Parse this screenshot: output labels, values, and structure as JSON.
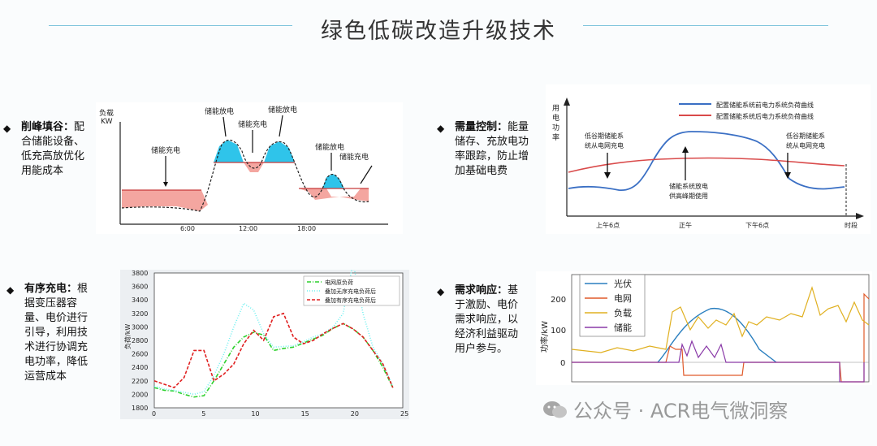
{
  "title": "绿色低碳改造升级技术",
  "sections": [
    {
      "head": "削峰填谷：",
      "body": "配合储能设备、低充高放优化用能成本"
    },
    {
      "head": "需量控制：",
      "body": "能量储存、充放电功率跟踪，防止增加基础电费"
    },
    {
      "head": "有序充电：",
      "body": "根据变压器容量、电价进行引导，利用技术进行协调充电功率，降低运营成本"
    },
    {
      "head": "需求响应：",
      "body": "基于激励、电价需求响应，以经济利益驱动用户参与。"
    }
  ],
  "chart1": {
    "ylabel": "负载\nKW",
    "annotations": [
      "储能充电",
      "储能放电",
      "储能充电",
      "储能放电",
      "储能放电",
      "储能充电"
    ],
    "xticks": [
      "6:00",
      "12:00",
      "18:00"
    ]
  },
  "chart2": {
    "ylabel": "用\n电\n功\n率",
    "legend": [
      "配置储能系统前电力系统负荷曲线",
      "配置储能系统后电力系统负荷曲线"
    ],
    "annotations": [
      "低谷期储能系\n统从电网充电",
      "储能系统放电\n供高峰期使用",
      "低谷期储能系\n统从电网充电"
    ],
    "xticks": [
      "上午6点",
      "正午",
      "下午6点",
      "时段"
    ]
  },
  "chart3": {
    "type": "line",
    "ylabel": "负荷/kW",
    "legend": [
      "电网原负荷",
      "叠加无序充电负荷后",
      "叠加有序充电负荷后"
    ],
    "yticks": [
      "3800",
      "3600",
      "3400",
      "3200",
      "3000",
      "2800",
      "2600",
      "2400",
      "2200",
      "2000",
      "1800"
    ],
    "xticks": [
      "0",
      "5",
      "10",
      "15",
      "20",
      "25"
    ],
    "xlim": [
      0,
      25
    ],
    "ylim": [
      1800,
      3800
    ],
    "colors": [
      "#2ed12e",
      "#6ef0f0",
      "#e02020"
    ],
    "x": [
      0,
      1,
      2,
      3,
      4,
      5,
      6,
      7,
      8,
      9,
      10,
      11,
      12,
      13,
      14,
      15,
      16,
      17,
      18,
      19,
      20,
      21,
      22,
      23,
      24
    ],
    "series": [
      {
        "name": "电网原负荷",
        "values": [
          2100,
          2060,
          2050,
          2000,
          1960,
          1980,
          2200,
          2450,
          2700,
          2850,
          2920,
          2880,
          2650,
          2680,
          2700,
          2760,
          2820,
          2880,
          2980,
          3050,
          2970,
          2850,
          2650,
          2400,
          2100
        ]
      },
      {
        "name": "叠加无序充电负荷后",
        "values": [
          2120,
          2080,
          2060,
          2030,
          2000,
          2040,
          2280,
          2600,
          3000,
          3350,
          3250,
          2900,
          2700,
          2710,
          2720,
          2780,
          2850,
          2900,
          3000,
          3200,
          3950,
          3200,
          2700,
          2450,
          2120
        ]
      },
      {
        "name": "叠加有序充电负荷后",
        "values": [
          2200,
          2150,
          2100,
          2250,
          2650,
          2650,
          2200,
          2300,
          2450,
          2750,
          2950,
          2800,
          3150,
          3200,
          2850,
          2750,
          2800,
          2900,
          2980,
          3050,
          2970,
          2850,
          2650,
          2450,
          2100
        ]
      }
    ]
  },
  "chart4": {
    "ylabel": "功率/kW",
    "legend": [
      "光伏",
      "电网",
      "负载",
      "储能"
    ],
    "colors": [
      "#2a7fbf",
      "#e05a2a",
      "#e0b020",
      "#8a3aa8"
    ],
    "yticks": [
      "200",
      "100",
      "0"
    ]
  },
  "watermark": "公众号 · ACR电气微洞察"
}
